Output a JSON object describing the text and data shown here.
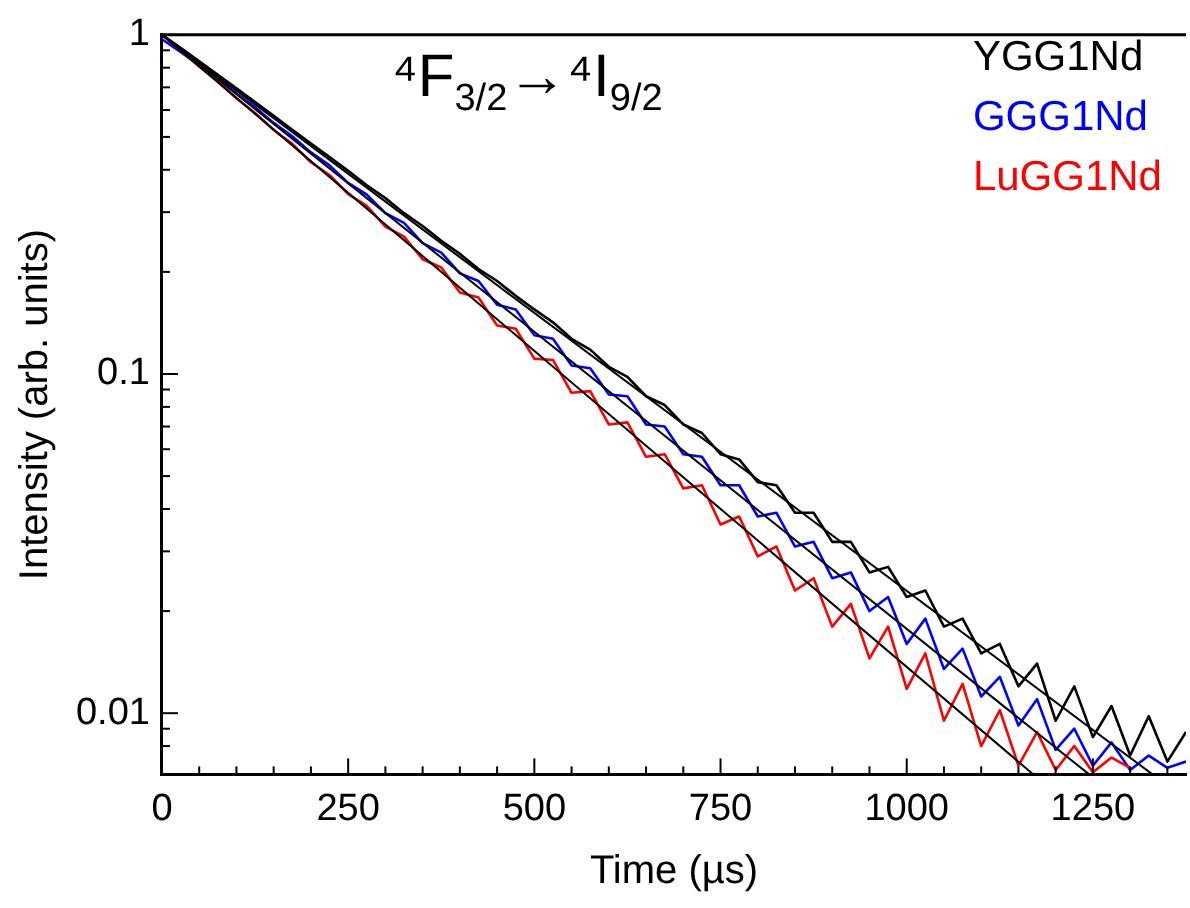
{
  "chart_data": {
    "type": "line",
    "xlabel": "Time (µs)",
    "ylabel": "Intensity (arb. units)",
    "annotations": [
      "⁴F$_{3/2}$→⁴I$_{9/2}$"
    ],
    "log": "y",
    "grid": false,
    "legend": "top right",
    "marker": "none",
    "line_style": "solid",
    "xlim": [
      0,
      1375
    ],
    "ylim": [
      0.0066,
      1
    ],
    "xticks": [
      0,
      {
        "value": 50,
        "label": null
      },
      {
        "value": 100,
        "label": null
      },
      {
        "value": 150,
        "label": null
      },
      {
        "value": 200,
        "label": null
      },
      250,
      {
        "value": 300,
        "label": null
      },
      {
        "value": 350,
        "label": null
      },
      {
        "value": 400,
        "label": null
      },
      {
        "value": 450,
        "label": null
      },
      500,
      {
        "value": 550,
        "label": null
      },
      {
        "value": 600,
        "label": null
      },
      {
        "value": 650,
        "label": null
      },
      {
        "value": 700,
        "label": null
      },
      750,
      {
        "value": 800,
        "label": null
      },
      {
        "value": 850,
        "label": null
      },
      {
        "value": 900,
        "label": null
      },
      {
        "value": 950,
        "label": null
      },
      1000,
      {
        "value": 1050,
        "label": null
      },
      {
        "value": 1100,
        "label": null
      },
      {
        "value": 1150,
        "label": null
      },
      {
        "value": 1200,
        "label": null
      },
      1250,
      {
        "value": 1300,
        "label": null
      },
      {
        "value": 1350,
        "label": null
      }
    ],
    "yticks": [
      {
        "value": 0.008,
        "label": null
      },
      {
        "value": 0.009,
        "label": null
      },
      0.01,
      {
        "value": 0.02,
        "label": null
      },
      {
        "value": 0.03,
        "label": null
      },
      {
        "value": 0.04,
        "label": null
      },
      {
        "value": 0.05,
        "label": null
      },
      {
        "value": 0.06,
        "label": null
      },
      {
        "value": 0.07,
        "label": null
      },
      {
        "value": 0.08,
        "label": null
      },
      {
        "value": 0.09,
        "label": null
      },
      0.1,
      {
        "value": 0.2,
        "label": null
      },
      {
        "value": 0.3,
        "label": null
      },
      {
        "value": 0.4,
        "label": null
      },
      {
        "value": 0.5,
        "label": null
      },
      {
        "value": 0.6,
        "label": null
      },
      {
        "value": 0.7,
        "label": null
      },
      {
        "value": 0.8,
        "label": null
      },
      {
        "value": 0.9,
        "label": null
      },
      1
    ],
    "series": [
      {
        "name": "YGG1Nd",
        "color": "#000000",
        "x": [
          0,
          25,
          50,
          75,
          100,
          125,
          150,
          175,
          200,
          225,
          250,
          275,
          300,
          325,
          350,
          375,
          400,
          425,
          450,
          475,
          500,
          525,
          550,
          575,
          600,
          625,
          650,
          675,
          700,
          725,
          750,
          775,
          800,
          825,
          850,
          875,
          900,
          925,
          950,
          975,
          1000,
          1025,
          1050,
          1075,
          1100,
          1125,
          1150,
          1175,
          1200,
          1225,
          1250,
          1275,
          1300,
          1325,
          1350,
          1375
        ],
        "values": [
          1,
          0.915,
          0.835,
          0.762,
          0.695,
          0.633,
          0.577,
          0.525,
          0.478,
          0.436,
          0.397,
          0.36,
          0.33,
          0.298,
          0.273,
          0.247,
          0.226,
          0.204,
          0.188,
          0.17,
          0.155,
          0.142,
          0.127,
          0.118,
          0.105,
          0.098,
          0.086,
          0.081,
          0.071,
          0.067,
          0.058,
          0.056,
          0.048,
          0.047,
          0.039,
          0.039,
          0.032,
          0.032,
          0.026,
          0.027,
          0.022,
          0.023,
          0.018,
          0.019,
          0.015,
          0.016,
          0.012,
          0.014,
          0.0095,
          0.012,
          0.0085,
          0.0105,
          0.0075,
          0.0098,
          0.0072,
          0.0088
        ]
      },
      {
        "name": "GGG1Nd",
        "color": "#0000ff",
        "x": [
          0,
          25,
          50,
          75,
          100,
          125,
          150,
          175,
          200,
          225,
          250,
          275,
          300,
          325,
          350,
          375,
          400,
          425,
          450,
          475,
          500,
          525,
          550,
          575,
          600,
          625,
          650,
          675,
          700,
          725,
          750,
          775,
          800,
          825,
          850,
          875,
          900,
          925,
          950,
          975,
          1000,
          1025,
          1050,
          1075,
          1100,
          1125,
          1150,
          1175,
          1200,
          1225,
          1250,
          1275,
          1300,
          1325,
          1350,
          1375
        ],
        "values": [
          0.97,
          0.89,
          0.812,
          0.746,
          0.672,
          0.612,
          0.55,
          0.502,
          0.45,
          0.412,
          0.366,
          0.338,
          0.298,
          0.279,
          0.243,
          0.228,
          0.198,
          0.188,
          0.16,
          0.155,
          0.13,
          0.127,
          0.106,
          0.104,
          0.087,
          0.086,
          0.071,
          0.07,
          0.058,
          0.057,
          0.047,
          0.047,
          0.038,
          0.039,
          0.031,
          0.032,
          0.025,
          0.026,
          0.02,
          0.022,
          0.016,
          0.019,
          0.0135,
          0.0155,
          0.0112,
          0.0128,
          0.0092,
          0.011,
          0.0078,
          0.009,
          0.007,
          0.0082,
          0.0068,
          0.0075,
          0.0069,
          0.0072
        ]
      },
      {
        "name": "LuGG1Nd",
        "color": "#ff0000",
        "x": [
          0,
          25,
          50,
          75,
          100,
          125,
          150,
          175,
          200,
          225,
          250,
          275,
          300,
          325,
          350,
          375,
          400,
          425,
          450,
          475,
          500,
          525,
          550,
          575,
          600,
          625,
          650,
          675,
          700,
          725,
          750,
          775,
          800,
          825,
          850,
          875,
          900,
          925,
          950,
          975,
          1000,
          1025,
          1050,
          1075,
          1100,
          1125,
          1150,
          1175,
          1200,
          1225,
          1250,
          1275,
          1300
        ],
        "values": [
          1,
          0.9,
          0.806,
          0.728,
          0.65,
          0.588,
          0.524,
          0.477,
          0.421,
          0.386,
          0.339,
          0.313,
          0.272,
          0.254,
          0.218,
          0.206,
          0.174,
          0.168,
          0.139,
          0.136,
          0.111,
          0.11,
          0.088,
          0.089,
          0.071,
          0.072,
          0.057,
          0.058,
          0.046,
          0.047,
          0.036,
          0.038,
          0.029,
          0.031,
          0.023,
          0.025,
          0.018,
          0.021,
          0.0145,
          0.018,
          0.0118,
          0.015,
          0.0095,
          0.0122,
          0.008,
          0.0102,
          0.007,
          0.0088,
          0.0068,
          0.008,
          0.0067,
          0.0074,
          0.0069
        ]
      },
      {
        "type": "line",
        "color": "#000000",
        "x": [
          0,
          1330
        ],
        "values": [
          1,
          0.0066
        ]
      },
      {
        "type": "line",
        "color": "#000000",
        "x": [
          0,
          1245
        ],
        "values": [
          1,
          0.0066
        ]
      },
      {
        "type": "line",
        "color": "#000000",
        "x": [
          0,
          1170
        ],
        "values": [
          1,
          0.0066
        ]
      }
    ]
  }
}
